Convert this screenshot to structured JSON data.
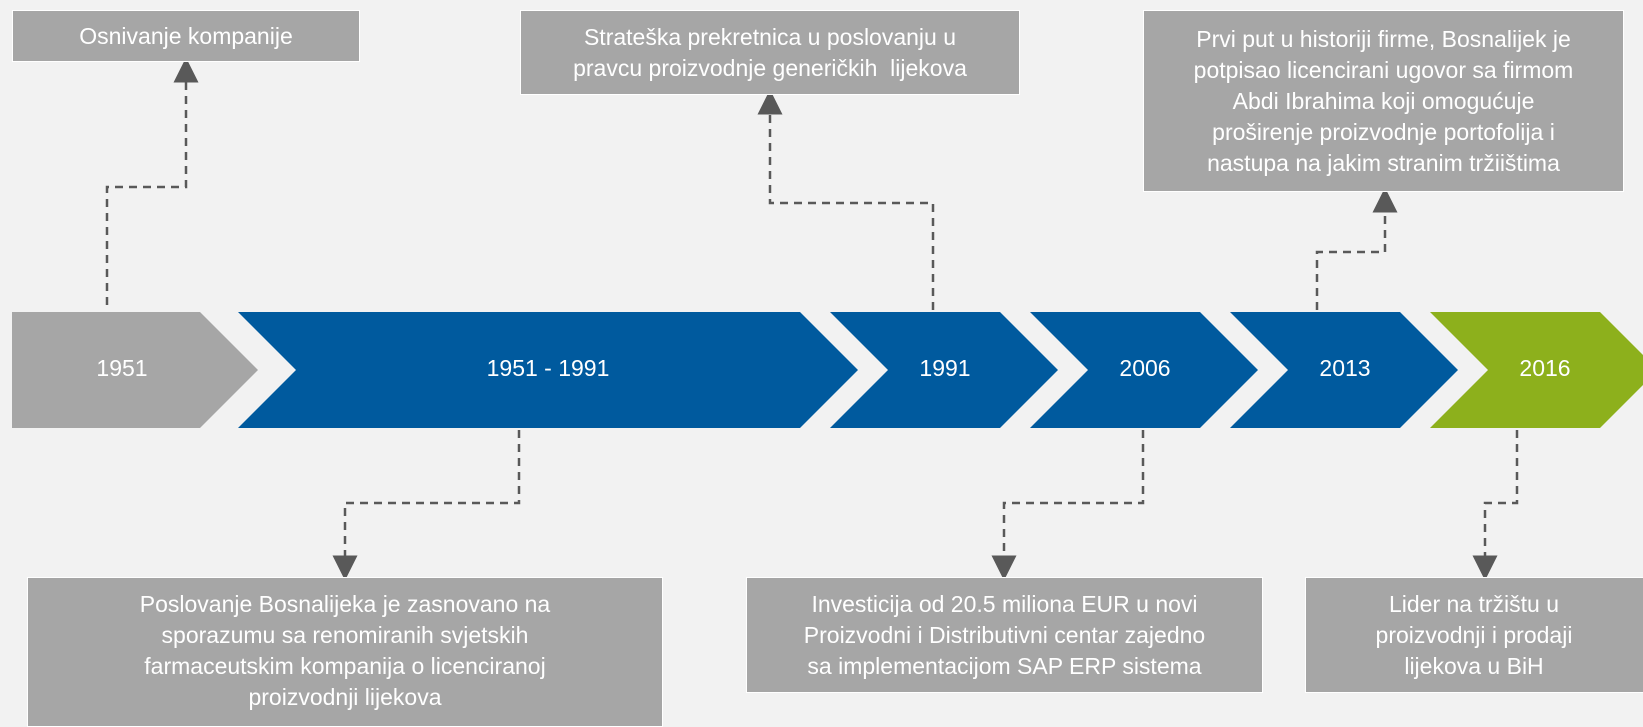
{
  "timeline": [
    {
      "label": "1951"
    },
    {
      "label": "1951 - 1991"
    },
    {
      "label": "1991"
    },
    {
      "label": "2006"
    },
    {
      "label": "2013"
    },
    {
      "label": "2016"
    }
  ],
  "top_boxes": [
    {
      "lines": [
        "Osnivanje kompanije"
      ]
    },
    {
      "lines": [
        "Strateška prekretnica u poslovanju u",
        "pravcu proizvodnje generičkih  lijekova"
      ]
    },
    {
      "lines": [
        "Prvi put u historiji firme, Bosnalijek je",
        "potpisao licencirani ugovor sa firmom",
        "Abdi Ibrahima koji omogućuje",
        "proširenje proizvodnje portofolija i",
        "nastupa na jakim stranim tržiištima"
      ]
    }
  ],
  "bottom_boxes": [
    {
      "lines": [
        "Poslovanje Bosnalijeka je zasnovano na",
        "sporazumu sa renomiranih svjetskih",
        "farmaceutskim kompanija o licenciranoj",
        "proizvodnji lijekova"
      ]
    },
    {
      "lines": [
        "Investicija od 20.5 miliona EUR u novi",
        "Proizvodni i Distributivni centar zajedno",
        "sa implementacijom SAP ERP sistema"
      ]
    },
    {
      "lines": [
        "Lider na tržištu u",
        "proizvodnji i prodaji",
        "lijekova u BiH"
      ]
    }
  ]
}
